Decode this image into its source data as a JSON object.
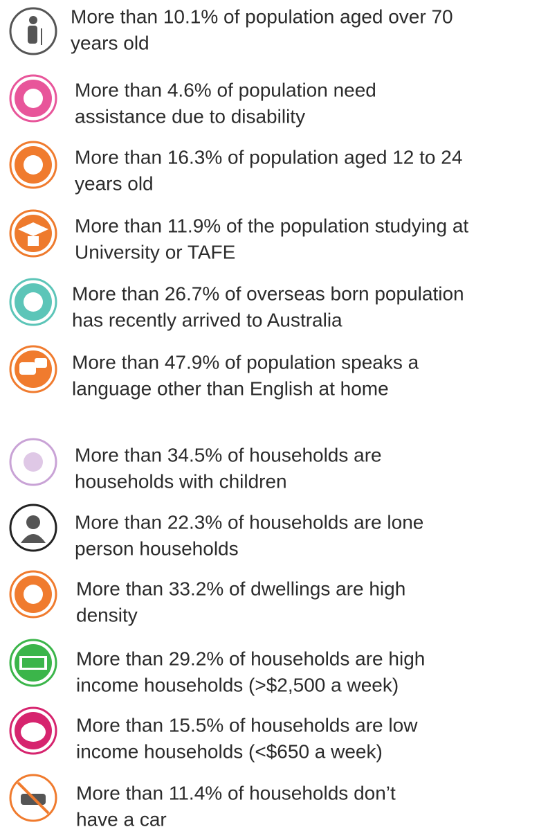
{
  "items": [
    {
      "lines": [
        "More than 10.1% of population aged over 70",
        "years old"
      ]
    },
    {
      "lines": [
        "More than 4.6% of population need",
        "assistance due to disability"
      ]
    },
    {
      "lines": [
        "More than 16.3% of population aged 12 to 24",
        "years old"
      ]
    },
    {
      "lines": [
        "More than 11.9% of the population studying at",
        "University or TAFE"
      ]
    },
    {
      "lines": [
        "More than 26.7% of overseas born population",
        "has recently arrived to Australia"
      ]
    },
    {
      "lines": [
        "More than 47.9% of population speaks a",
        "language other than English at home"
      ]
    },
    {
      "lines": [
        "More than 34.5% of households are",
        "households with children"
      ]
    },
    {
      "lines": [
        "More than 22.3% of households are lone",
        "person households"
      ]
    },
    {
      "lines": [
        "More than 33.2% of dwellings are high",
        "density"
      ]
    },
    {
      "lines": [
        "More than 29.2% of households are high",
        "income households (>$2,500 a week)"
      ]
    },
    {
      "lines": [
        "More than 15.5% of households are low",
        "income households (<$650 a week)"
      ]
    },
    {
      "lines": [
        "More than 11.4% of households don’t",
        "have a car"
      ]
    }
  ]
}
